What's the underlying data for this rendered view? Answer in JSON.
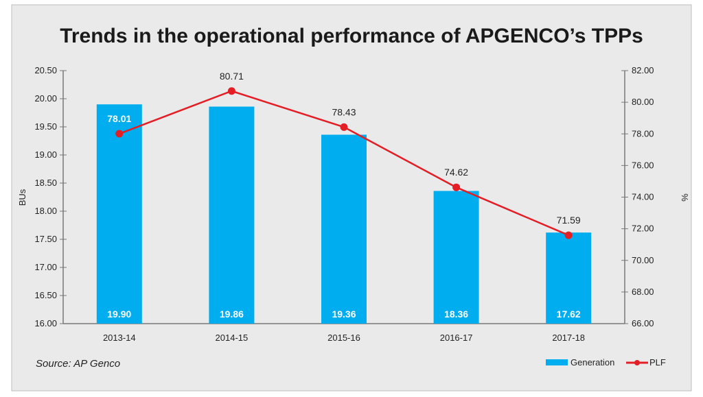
{
  "chart_data": {
    "type": "bar+line",
    "title": "Trends in the operational performance of APGENCO’s TPPs",
    "source": "Source: AP Genco",
    "categories": [
      "2013-14",
      "2014-15",
      "2015-16",
      "2016-17",
      "2017-18"
    ],
    "series": [
      {
        "name": "Generation",
        "type": "bar",
        "axis": "left",
        "values": [
          19.9,
          19.86,
          19.36,
          18.36,
          17.62
        ],
        "labels": [
          "19.90",
          "19.86",
          "19.36",
          "18.36",
          "17.62"
        ],
        "color": "#00aeef"
      },
      {
        "name": "PLF",
        "type": "line",
        "axis": "right",
        "values": [
          78.01,
          80.71,
          78.43,
          74.62,
          71.59
        ],
        "labels": [
          "78.01",
          "80.71",
          "78.43",
          "74.62",
          "71.59"
        ],
        "color": "#e31e24"
      }
    ],
    "ylabel_left": "BUs",
    "ylabel_right": "%",
    "ylim_left": [
      16.0,
      20.5
    ],
    "yticks_left": [
      "16.00",
      "16.50",
      "17.00",
      "17.50",
      "18.00",
      "18.50",
      "19.00",
      "19.50",
      "20.00",
      "20.50"
    ],
    "ylim_right": [
      66.0,
      82.0
    ],
    "yticks_right": [
      "66.00",
      "68.00",
      "70.00",
      "72.00",
      "74.00",
      "76.00",
      "78.00",
      "80.00",
      "82.00"
    ],
    "grid": false,
    "legend_position": "bottom-right",
    "background": "#ebeaeb"
  }
}
